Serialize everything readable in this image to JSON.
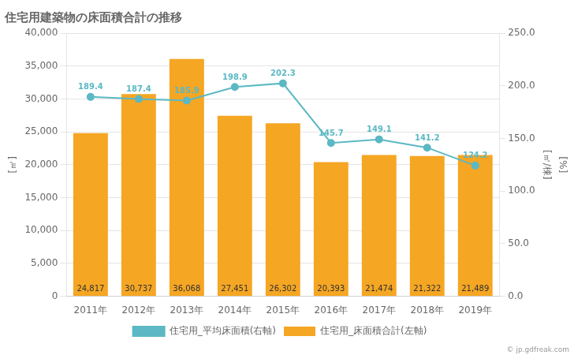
{
  "chart_data": {
    "type": "bar",
    "title": "住宅用建築物の床面積合計の推移",
    "categories": [
      "2011年",
      "2012年",
      "2013年",
      "2014年",
      "2015年",
      "2016年",
      "2017年",
      "2018年",
      "2019年"
    ],
    "series": [
      {
        "name": "住宅用_床面積合計(左軸)",
        "type": "bar",
        "color": "#F5A623",
        "values": [
          24817,
          30737,
          36068,
          27451,
          26302,
          20393,
          21474,
          21322,
          21489
        ],
        "value_labels": [
          "24,817",
          "30,737",
          "36,068",
          "27,451",
          "26,302",
          "20,393",
          "21,474",
          "21,322",
          "21,489"
        ]
      },
      {
        "name": "住宅用_平均床面積(右軸)",
        "type": "line",
        "color": "#5BB8C4",
        "marker": "circle",
        "axis": "y2",
        "values": [
          189.4,
          187.4,
          185.9,
          198.9,
          202.3,
          145.7,
          149.1,
          141.2,
          124.2
        ]
      }
    ],
    "ylabel": "[㎡]",
    "y2label": "[㎡/棟]",
    "annotations": [
      "[%]"
    ],
    "watermark": "© jp.gdfreak.com",
    "ylim": [
      0,
      40000
    ],
    "yticks": [
      0,
      {
        "value": 5000,
        "label": "5,000"
      },
      {
        "value": 10000,
        "label": "10,000"
      },
      {
        "value": 15000,
        "label": "15,000"
      },
      {
        "value": 20000,
        "label": "20,000"
      },
      {
        "value": 25000,
        "label": "25,000"
      },
      {
        "value": 30000,
        "label": "30,000"
      },
      {
        "value": 35000,
        "label": "35,000"
      },
      {
        "value": 40000,
        "label": "40,000"
      }
    ],
    "y2lim": [
      0,
      250
    ],
    "y2ticks": [
      {
        "value": 0,
        "label": "0.0"
      },
      {
        "value": 50,
        "label": "50.0"
      },
      {
        "value": 100,
        "label": "100.0"
      },
      {
        "value": 150,
        "label": "150.0"
      },
      {
        "value": 200,
        "label": "200.0"
      },
      {
        "value": 250,
        "label": "250.0"
      }
    ],
    "grid": true,
    "legend": "bottom",
    "data_labels": true
  }
}
